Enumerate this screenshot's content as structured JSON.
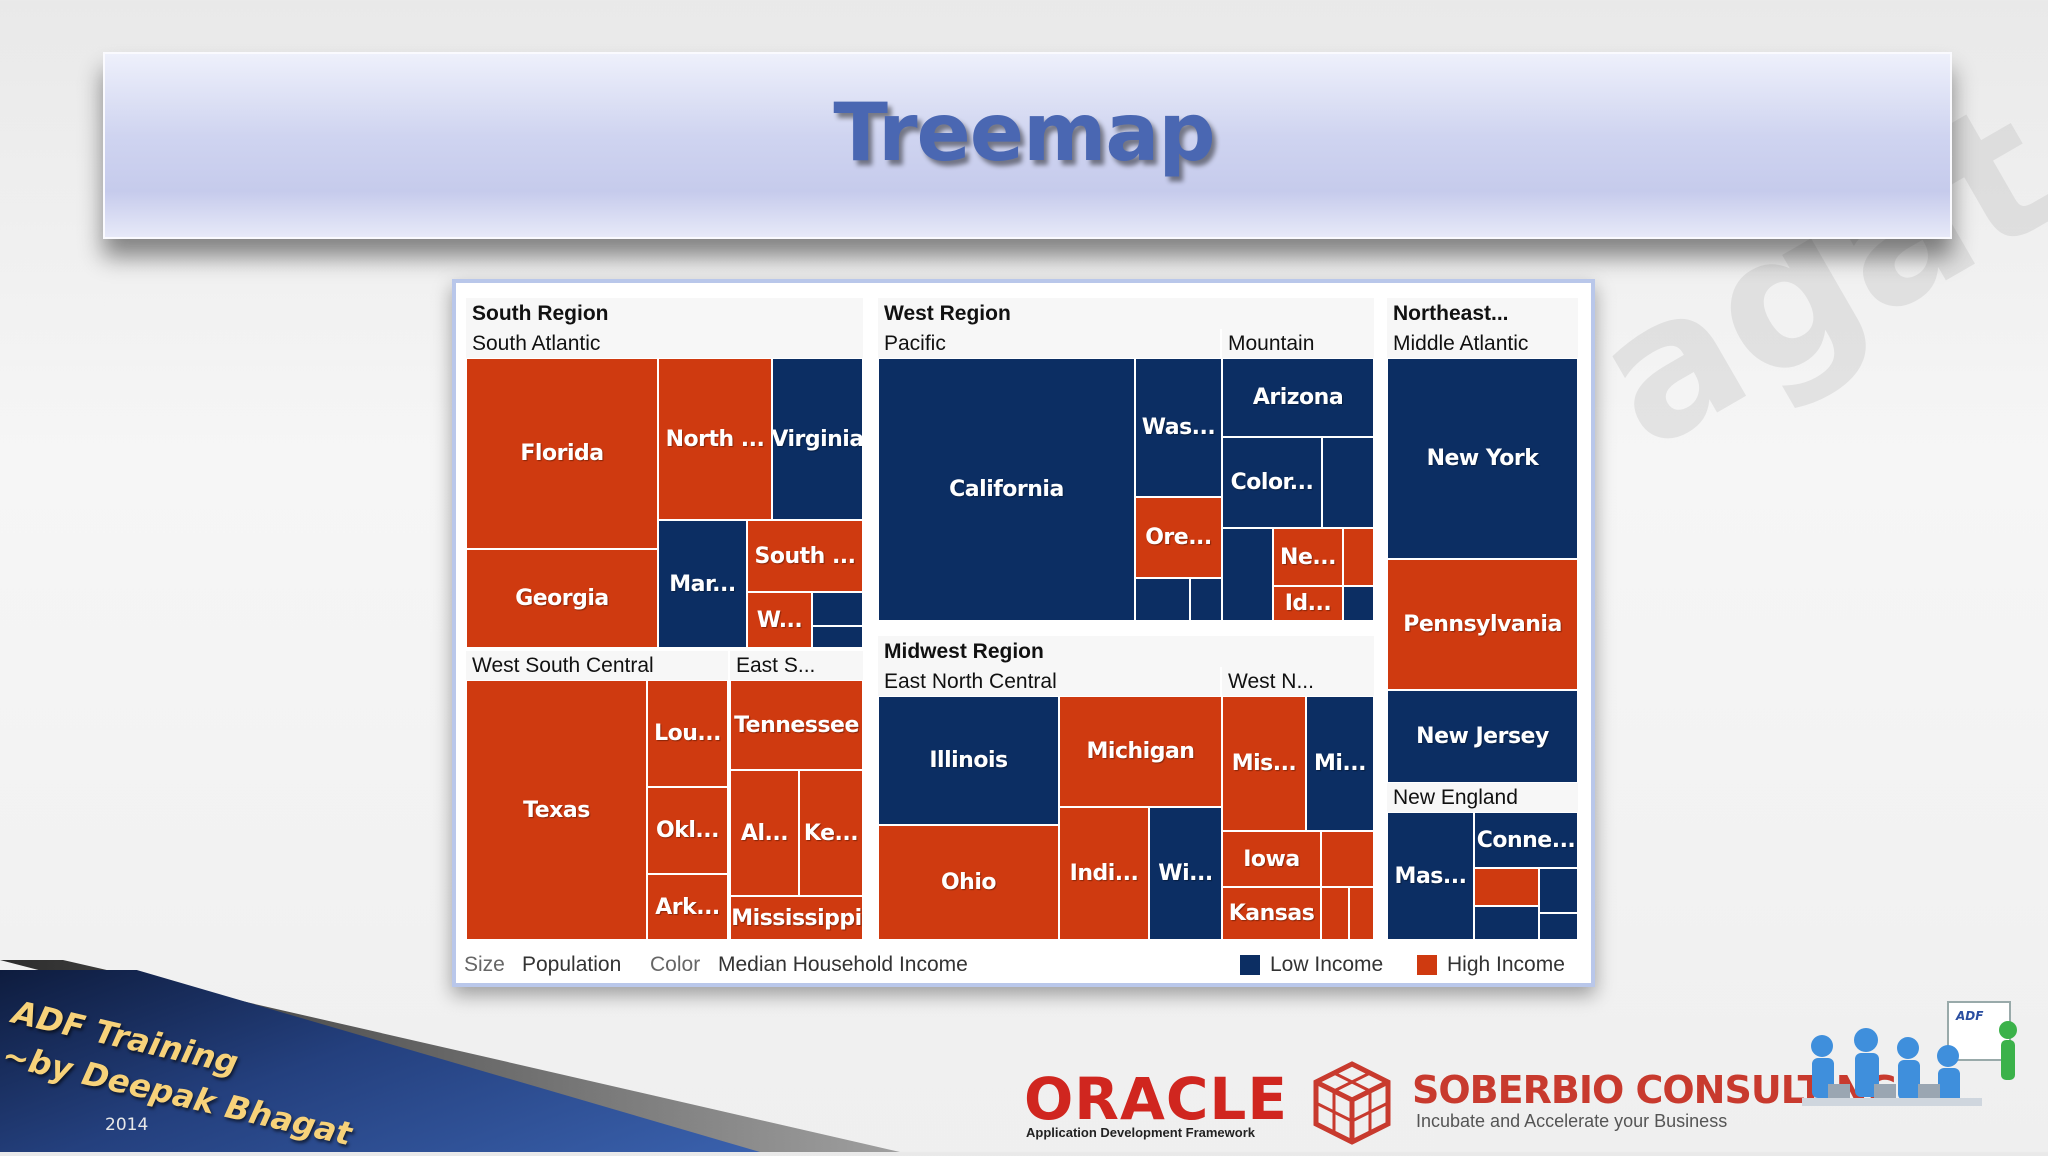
{
  "slide": {
    "title": "Treemap"
  },
  "treemap": {
    "regions": {
      "south": "South Region",
      "west": "West Region",
      "northeast": "Northeast...",
      "midwest": "Midwest Region"
    },
    "divisions": {
      "south_atlantic": "South Atlantic",
      "west_south_central": "West South Central",
      "east_south": "East S...",
      "pacific": "Pacific",
      "mountain": "Mountain",
      "east_north_central": "East North Central",
      "west_north": "West N...",
      "middle_atlantic": "Middle Atlantic",
      "new_england": "New England"
    },
    "cells": {
      "florida": "Florida",
      "north_carolina": "North ...",
      "virginia": "Virginia",
      "georgia": "Georgia",
      "maryland": "Mar...",
      "south_carolina": "South ...",
      "west_virginia": "W...",
      "texas": "Texas",
      "louisiana": "Lou...",
      "oklahoma": "Okl...",
      "arkansas": "Ark...",
      "tennessee": "Tennessee",
      "alabama": "Al...",
      "kentucky": "Ke...",
      "mississippi": "Mississippi",
      "california": "California",
      "washington": "Was...",
      "oregon": "Ore...",
      "arizona": "Arizona",
      "colorado": "Color...",
      "nevada": "Ne...",
      "idaho": "Id...",
      "illinois": "Illinois",
      "michigan": "Michigan",
      "ohio": "Ohio",
      "indiana": "Indi...",
      "wisconsin": "Wi...",
      "missouri": "Mis...",
      "minnesota": "Mi...",
      "iowa": "Iowa",
      "kansas": "Kansas",
      "new_york": "New York",
      "pennsylvania": "Pennsylvania",
      "new_jersey": "New Jersey",
      "massachusetts": "Mas...",
      "connecticut": "Conne..."
    },
    "legend": {
      "size_label": "Size",
      "size_value": "Population",
      "color_label": "Color",
      "color_value": "Median Household Income",
      "low_label": "Low Income",
      "high_label": "High Income",
      "low_color": "#0c2e63",
      "high_color": "#cf3a10"
    }
  },
  "footer": {
    "adf_line1": "ADF Training",
    "adf_line2": "~by Deepak Bhagat",
    "year": "2014",
    "oracle": "ORACLE",
    "oracle_sub": "Application Development Framework",
    "soberbio": "SOBERBIO CONSULTING",
    "soberbio_sub": "Incubate and Accelerate your Business",
    "watermark": "agat"
  }
}
